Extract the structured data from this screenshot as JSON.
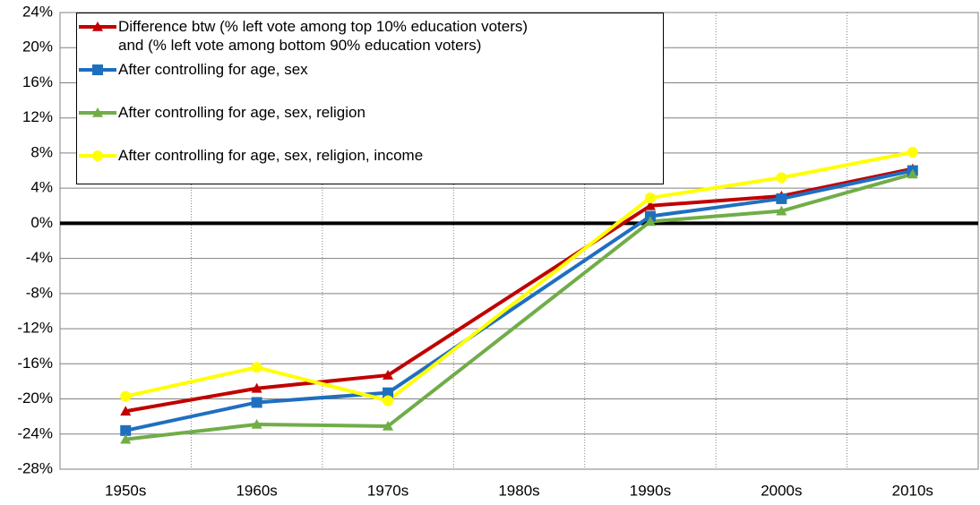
{
  "chart_data": {
    "type": "line",
    "x": [
      1950,
      1960,
      1970,
      1990,
      2000,
      2010
    ],
    "xlim": [
      1945,
      2015
    ],
    "xticks": [
      {
        "value": 1950,
        "label": "1950s"
      },
      {
        "value": 1960,
        "label": "1960s"
      },
      {
        "value": 1970,
        "label": "1970s"
      },
      {
        "value": 1980,
        "label": "1980s"
      },
      {
        "value": 1990,
        "label": "1990s"
      },
      {
        "value": 2000,
        "label": "2000s"
      },
      {
        "value": 2010,
        "label": "2010s"
      }
    ],
    "ylim": [
      -28,
      24
    ],
    "yticks": [
      {
        "value": -28,
        "label": "-28%"
      },
      {
        "value": -24,
        "label": "-24%"
      },
      {
        "value": -20,
        "label": "-20%"
      },
      {
        "value": -16,
        "label": "-16%"
      },
      {
        "value": -12,
        "label": "-12%"
      },
      {
        "value": -8,
        "label": "-8%"
      },
      {
        "value": -4,
        "label": "-4%"
      },
      {
        "value": 0,
        "label": "0%"
      },
      {
        "value": 4,
        "label": "4%"
      },
      {
        "value": 8,
        "label": "8%"
      },
      {
        "value": 12,
        "label": "12%"
      },
      {
        "value": 16,
        "label": "16%"
      },
      {
        "value": 20,
        "label": "20%"
      },
      {
        "value": 24,
        "label": "24%"
      }
    ],
    "grid": true,
    "legend": "top-left",
    "series": [
      {
        "name": "Difference btw (% left vote among top 10% education voters)\nand (% left vote among bottom 90% education voters)",
        "color": "#c00000",
        "marker": "triangle",
        "values": [
          -21.4,
          -18.8,
          -17.3,
          2.0,
          3.1,
          6.2
        ]
      },
      {
        "name": "After controlling for age, sex",
        "color": "#1f6fbf",
        "marker": "square",
        "values": [
          -23.6,
          -20.4,
          -19.3,
          0.8,
          2.8,
          6.0
        ]
      },
      {
        "name": "After controlling for age, sex, religion",
        "color": "#70ad47",
        "marker": "triangle",
        "values": [
          -24.6,
          -22.9,
          -23.1,
          0.2,
          1.4,
          5.6
        ]
      },
      {
        "name": "After controlling for age, sex, religion, income",
        "color": "#ffff00",
        "marker": "circle",
        "values": [
          -19.7,
          -16.4,
          -20.2,
          2.9,
          5.2,
          8.1
        ]
      }
    ]
  }
}
